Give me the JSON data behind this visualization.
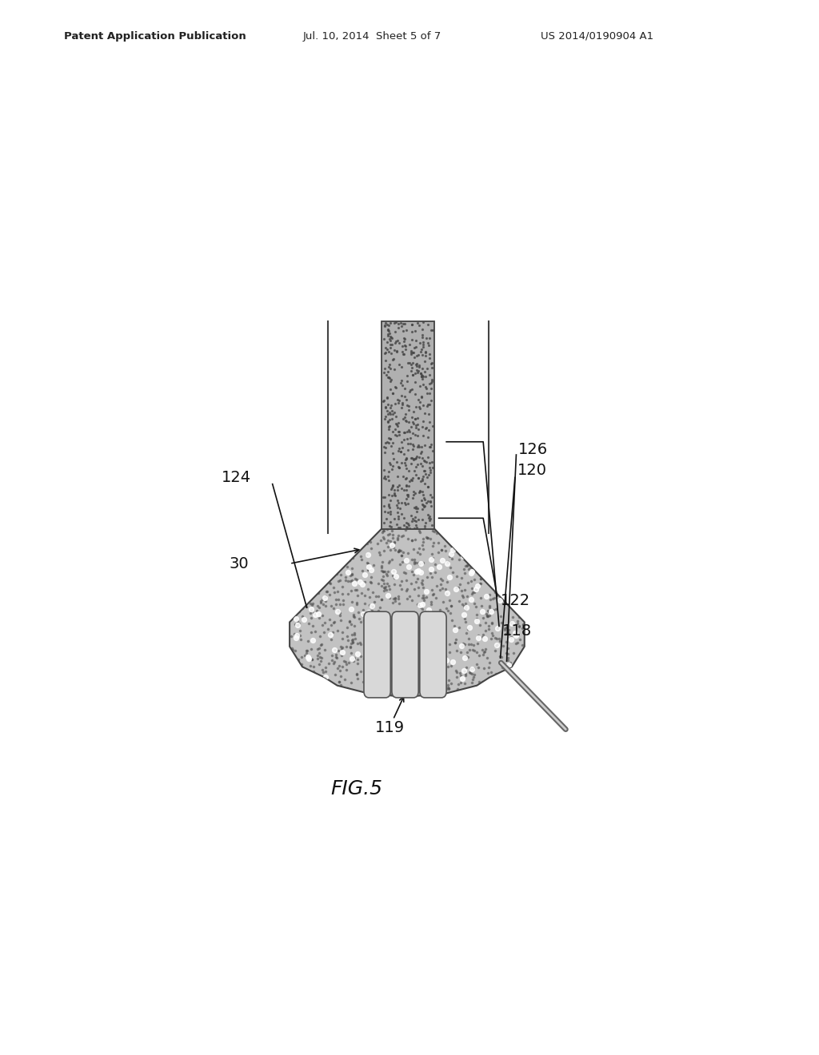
{
  "bg_color": "#ffffff",
  "header_left": "Patent Application Publication",
  "header_center": "Jul. 10, 2014  Sheet 5 of 7",
  "header_right": "US 2014/0190904 A1",
  "figure_label": "FIG.5",
  "text_color": "#111111",
  "shaft_fill": "#aaaaaa",
  "head_fill": "#bbbbbb",
  "edge_color": "#444444",
  "dark_stipple": "#555555",
  "light_stipple": "#ffffff"
}
